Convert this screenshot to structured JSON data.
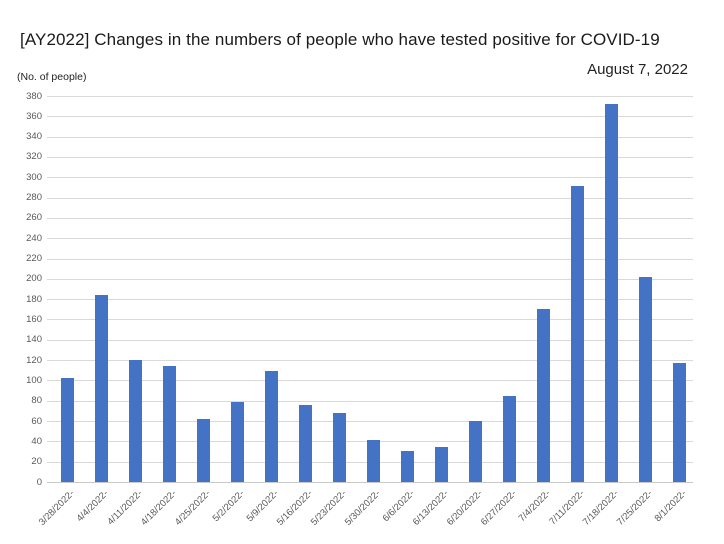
{
  "header": {
    "title": "[AY2022] Changes in the numbers of people who have tested positive for COVID-19",
    "date_label": "August 7, 2022"
  },
  "chart_data": {
    "type": "bar",
    "title": "[AY2022] Changes in the numbers of people who have tested positive for COVID-19",
    "subtitle": "August 7, 2022",
    "xlabel": "",
    "ylabel": "(No. of people)",
    "categories": [
      "3/28/2022-",
      "4/4/2022-",
      "4/11/2022-",
      "4/18/2022-",
      "4/25/2022-",
      "5/2/2022-",
      "5/9/2022-",
      "5/16/2022-",
      "5/23/2022-",
      "5/30/2022-",
      "6/6/2022-",
      "6/13/2022-",
      "6/20/2022-",
      "6/27/2022-",
      "7/4/2022-",
      "7/11/2022-",
      "7/18/2022-",
      "7/25/2022-",
      "8/1/2022-"
    ],
    "values": [
      102,
      184,
      120,
      114,
      62,
      79,
      109,
      76,
      68,
      41,
      31,
      34,
      60,
      85,
      170,
      291,
      372,
      202,
      117
    ],
    "ylim": [
      0,
      380
    ],
    "ytick_step": 20,
    "grid": true,
    "legend": "none",
    "bar_color": "#4472C4",
    "gridline_color": "#D9D9D9",
    "axis_text_color": "#595959"
  }
}
